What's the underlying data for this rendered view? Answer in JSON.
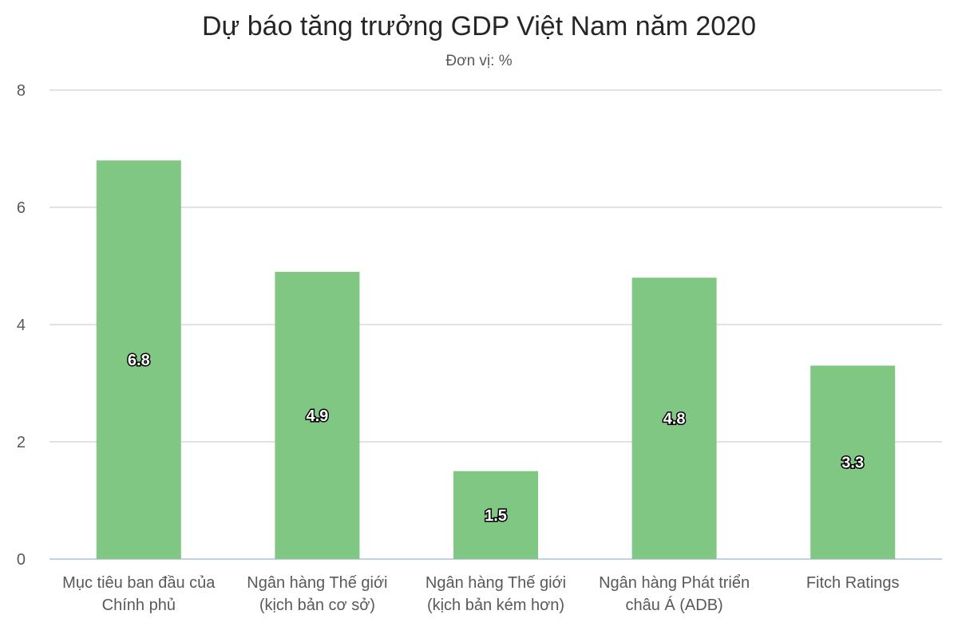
{
  "chart_data": {
    "type": "bar",
    "title": "Dự báo tăng trưởng GDP Việt Nam năm 2020",
    "subtitle": "Đơn vị: %",
    "xlabel": "",
    "ylabel": "",
    "categories": [
      [
        "Mục tiêu ban đầu của",
        "Chính phủ"
      ],
      [
        "Ngân hàng Thế giới",
        "(kịch bản cơ sở)"
      ],
      [
        "Ngân hàng Thế giới",
        "(kịch bản kém hơn)"
      ],
      [
        "Ngân hàng Phát triển",
        "châu Á (ADB)"
      ],
      [
        "Fitch Ratings"
      ]
    ],
    "values": [
      6.8,
      4.9,
      1.5,
      4.8,
      3.3
    ],
    "data_labels": [
      "6.8",
      "4.9",
      "1.5",
      "4.8",
      "3.3"
    ],
    "ylim": [
      0,
      8
    ],
    "yticks": [
      "0",
      "2",
      "4",
      "6",
      "8"
    ],
    "grid": true,
    "legend": "none",
    "colors": {
      "bar": "#81c784",
      "grid": "#d9d9d9",
      "axis": "#bfd3e6"
    }
  }
}
